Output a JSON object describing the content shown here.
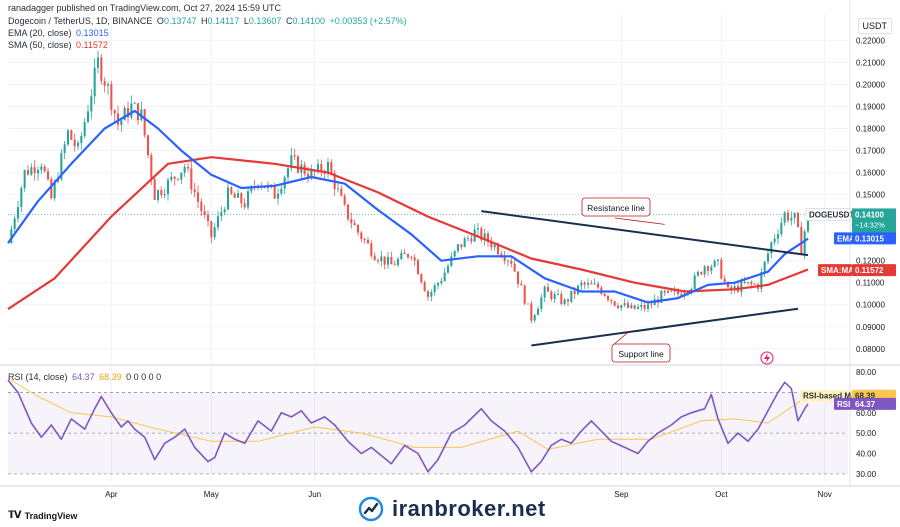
{
  "header": {
    "attribution": "ranadagger published on TradingView.com, Oct 27, 2024 15:59 UTC",
    "symbol": "Dogecoin / TetherUS, 1D, BINANCE",
    "o_label": "O",
    "o_val": "0.13747",
    "h_label": "H",
    "h_val": "0.14117",
    "l_label": "L",
    "l_val": "0.13607",
    "c_label": "C",
    "c_val": "0.14100",
    "change": "+0.00353 (+2.57%)",
    "ema_label": "EMA (20, close)",
    "ema_val": "0.13015",
    "sma_label": "SMA (50, close)",
    "sma_val": "0.11572",
    "rsi_label": "RSI (14, close)",
    "rsi_val": "64.37",
    "rsi_ma_val": "68.39",
    "rsi_rest": "0 0 0 0 0",
    "currency": "USDT"
  },
  "footer": {
    "brand": "TradingView",
    "watermark": "iranbroker.net"
  },
  "colors": {
    "up": "#26a69a",
    "down": "#ef5350",
    "ema": "#2962ff",
    "sma": "#e53935",
    "rsi": "#7e57c2",
    "rsi_ma": "#f9c74f",
    "trend": "#1a2f4f",
    "annot": "#b71c1c",
    "grid": "#f0f3fa"
  },
  "chart_data": [
    {
      "type": "candlestick",
      "title": "Dogecoin / TetherUS, 1D, BINANCE",
      "ylabel": "USDT",
      "ylim": [
        0.074,
        0.232
      ],
      "y_ticks": [
        "0.22000",
        "0.21000",
        "0.20000",
        "0.19000",
        "0.18000",
        "0.17000",
        "0.16000",
        "0.15000",
        "0.12000",
        "0.11000",
        "0.10000",
        "0.09000",
        "0.08000"
      ],
      "x_ticks": [
        "Apr",
        "May",
        "Jun",
        "Sep",
        "Oct",
        "Nov"
      ],
      "close_path": [
        [
          "2024-03-01",
          0.128
        ],
        [
          "2024-03-06",
          0.16
        ],
        [
          "2024-03-11",
          0.165
        ],
        [
          "2024-03-14",
          0.148
        ],
        [
          "2024-03-19",
          0.178
        ],
        [
          "2024-03-22",
          0.17
        ],
        [
          "2024-03-28",
          0.21
        ],
        [
          "2024-03-31",
          0.198
        ],
        [
          "2024-04-03",
          0.182
        ],
        [
          "2024-04-07",
          0.19
        ],
        [
          "2024-04-10",
          0.186
        ],
        [
          "2024-04-14",
          0.15
        ],
        [
          "2024-04-18",
          0.155
        ],
        [
          "2024-04-23",
          0.163
        ],
        [
          "2024-04-28",
          0.143
        ],
        [
          "2024-05-01",
          0.131
        ],
        [
          "2024-05-06",
          0.15
        ],
        [
          "2024-05-11",
          0.146
        ],
        [
          "2024-05-15",
          0.157
        ],
        [
          "2024-05-20",
          0.15
        ],
        [
          "2024-05-25",
          0.165
        ],
        [
          "2024-05-31",
          0.159
        ],
        [
          "2024-06-05",
          0.163
        ],
        [
          "2024-06-10",
          0.143
        ],
        [
          "2024-06-14",
          0.133
        ],
        [
          "2024-06-19",
          0.123
        ],
        [
          "2024-06-24",
          0.118
        ],
        [
          "2024-06-30",
          0.124
        ],
        [
          "2024-07-05",
          0.104
        ],
        [
          "2024-07-09",
          0.112
        ],
        [
          "2024-07-14",
          0.126
        ],
        [
          "2024-07-19",
          0.133
        ],
        [
          "2024-07-24",
          0.128
        ],
        [
          "2024-07-30",
          0.12
        ],
        [
          "2024-08-05",
          0.094
        ],
        [
          "2024-08-09",
          0.106
        ],
        [
          "2024-08-15",
          0.101
        ],
        [
          "2024-08-20",
          0.109
        ],
        [
          "2024-08-25",
          0.108
        ],
        [
          "2024-08-30",
          0.101
        ],
        [
          "2024-09-04",
          0.098
        ],
        [
          "2024-09-09",
          0.099
        ],
        [
          "2024-09-13",
          0.104
        ],
        [
          "2024-09-18",
          0.105
        ],
        [
          "2024-09-22",
          0.109
        ],
        [
          "2024-09-26",
          0.118
        ],
        [
          "2024-09-30",
          0.118
        ],
        [
          "2024-10-03",
          0.106
        ],
        [
          "2024-10-08",
          0.109
        ],
        [
          "2024-10-12",
          0.109
        ],
        [
          "2024-10-16",
          0.128
        ],
        [
          "2024-10-20",
          0.141
        ],
        [
          "2024-10-23",
          0.139
        ],
        [
          "2024-10-25",
          0.126
        ],
        [
          "2024-10-27",
          0.141
        ]
      ],
      "series": [
        {
          "name": "EMA",
          "values": [
            [
              "2024-03-01",
              0.128
            ],
            [
              "2024-03-10",
              0.147
            ],
            [
              "2024-03-20",
              0.164
            ],
            [
              "2024-03-30",
              0.18
            ],
            [
              "2024-04-08",
              0.188
            ],
            [
              "2024-04-15",
              0.18
            ],
            [
              "2024-04-22",
              0.17
            ],
            [
              "2024-05-01",
              0.159
            ],
            [
              "2024-05-10",
              0.153
            ],
            [
              "2024-05-20",
              0.154
            ],
            [
              "2024-05-31",
              0.158
            ],
            [
              "2024-06-10",
              0.155
            ],
            [
              "2024-06-20",
              0.143
            ],
            [
              "2024-06-30",
              0.132
            ],
            [
              "2024-07-09",
              0.12
            ],
            [
              "2024-07-20",
              0.122
            ],
            [
              "2024-07-30",
              0.122
            ],
            [
              "2024-08-09",
              0.112
            ],
            [
              "2024-08-20",
              0.106
            ],
            [
              "2024-08-30",
              0.106
            ],
            [
              "2024-09-09",
              0.101
            ],
            [
              "2024-09-18",
              0.103
            ],
            [
              "2024-09-27",
              0.109
            ],
            [
              "2024-10-05",
              0.11
            ],
            [
              "2024-10-15",
              0.115
            ],
            [
              "2024-10-20",
              0.123
            ],
            [
              "2024-10-27",
              0.13
            ]
          ]
        },
        {
          "name": "SMA",
          "values": [
            [
              "2024-03-01",
              0.098
            ],
            [
              "2024-03-15",
              0.112
            ],
            [
              "2024-04-01",
              0.14
            ],
            [
              "2024-04-18",
              0.164
            ],
            [
              "2024-05-01",
              0.167
            ],
            [
              "2024-05-20",
              0.164
            ],
            [
              "2024-06-05",
              0.16
            ],
            [
              "2024-06-20",
              0.151
            ],
            [
              "2024-07-05",
              0.14
            ],
            [
              "2024-07-20",
              0.131
            ],
            [
              "2024-08-05",
              0.121
            ],
            [
              "2024-08-20",
              0.116
            ],
            [
              "2024-09-05",
              0.11
            ],
            [
              "2024-09-20",
              0.106
            ],
            [
              "2024-10-05",
              0.107
            ],
            [
              "2024-10-15",
              0.109
            ],
            [
              "2024-10-27",
              0.116
            ]
          ]
        }
      ],
      "trendlines": [
        {
          "name": "Resistance line",
          "from": [
            "2024-07-21",
            0.1425
          ],
          "to": [
            "2024-10-27",
            0.1225
          ]
        },
        {
          "name": "Support line",
          "from": [
            "2024-08-05",
            0.0815
          ],
          "to": [
            "2024-10-24",
            0.0982
          ]
        }
      ],
      "price_labels": [
        {
          "label": "DOGEUSDT",
          "value": "0.14100",
          "sub1": "−14:32%",
          "sub2": "08:00:22"
        },
        {
          "label": "EMA",
          "value": "0.13015"
        },
        {
          "label": "SMA:MA",
          "value": "0.11572"
        }
      ]
    },
    {
      "type": "line",
      "title": "RSI (14, close)",
      "ylim": [
        26,
        82
      ],
      "y_ticks": [
        "80.00",
        "60.00",
        "50.00",
        "40.00",
        "30.00"
      ],
      "series": [
        {
          "name": "RSI",
          "values": [
            [
              "2024-03-01",
              76
            ],
            [
              "2024-03-04",
              70
            ],
            [
              "2024-03-08",
              55
            ],
            [
              "2024-03-11",
              48
            ],
            [
              "2024-03-14",
              54
            ],
            [
              "2024-03-17",
              47
            ],
            [
              "2024-03-20",
              57
            ],
            [
              "2024-03-24",
              52
            ],
            [
              "2024-03-27",
              62
            ],
            [
              "2024-03-29",
              68
            ],
            [
              "2024-04-01",
              60
            ],
            [
              "2024-04-04",
              53
            ],
            [
              "2024-04-06",
              56
            ],
            [
              "2024-04-08",
              52
            ],
            [
              "2024-04-11",
              48
            ],
            [
              "2024-04-14",
              37
            ],
            [
              "2024-04-17",
              45
            ],
            [
              "2024-04-20",
              48
            ],
            [
              "2024-04-23",
              52
            ],
            [
              "2024-04-26",
              43
            ],
            [
              "2024-04-30",
              36
            ],
            [
              "2024-05-02",
              38
            ],
            [
              "2024-05-05",
              50
            ],
            [
              "2024-05-08",
              47
            ],
            [
              "2024-05-11",
              45
            ],
            [
              "2024-05-15",
              56
            ],
            [
              "2024-05-19",
              51
            ],
            [
              "2024-05-22",
              60
            ],
            [
              "2024-05-25",
              58
            ],
            [
              "2024-05-28",
              61
            ],
            [
              "2024-05-31",
              55
            ],
            [
              "2024-06-04",
              58
            ],
            [
              "2024-06-07",
              54
            ],
            [
              "2024-06-11",
              46
            ],
            [
              "2024-06-15",
              40
            ],
            [
              "2024-06-18",
              43
            ],
            [
              "2024-06-21",
              39
            ],
            [
              "2024-06-24",
              35
            ],
            [
              "2024-06-28",
              44
            ],
            [
              "2024-07-02",
              40
            ],
            [
              "2024-07-05",
              31
            ],
            [
              "2024-07-08",
              37
            ],
            [
              "2024-07-12",
              50
            ],
            [
              "2024-07-16",
              54
            ],
            [
              "2024-07-21",
              62
            ],
            [
              "2024-07-24",
              56
            ],
            [
              "2024-07-28",
              51
            ],
            [
              "2024-08-01",
              43
            ],
            [
              "2024-08-05",
              31
            ],
            [
              "2024-08-08",
              36
            ],
            [
              "2024-08-11",
              44
            ],
            [
              "2024-08-14",
              47
            ],
            [
              "2024-08-17",
              45
            ],
            [
              "2024-08-20",
              51
            ],
            [
              "2024-08-23",
              56
            ],
            [
              "2024-08-26",
              51
            ],
            [
              "2024-08-29",
              46
            ],
            [
              "2024-09-02",
              43
            ],
            [
              "2024-09-06",
              40
            ],
            [
              "2024-09-09",
              46
            ],
            [
              "2024-09-12",
              50
            ],
            [
              "2024-09-16",
              54
            ],
            [
              "2024-09-19",
              58
            ],
            [
              "2024-09-22",
              60
            ],
            [
              "2024-09-26",
              62
            ],
            [
              "2024-09-28",
              69
            ],
            [
              "2024-09-30",
              57
            ],
            [
              "2024-10-03",
              45
            ],
            [
              "2024-10-06",
              50
            ],
            [
              "2024-10-09",
              46
            ],
            [
              "2024-10-12",
              52
            ],
            [
              "2024-10-14",
              58
            ],
            [
              "2024-10-16",
              64
            ],
            [
              "2024-10-18",
              70
            ],
            [
              "2024-10-20",
              75
            ],
            [
              "2024-10-22",
              72
            ],
            [
              "2024-10-24",
              56
            ],
            [
              "2024-10-26",
              62
            ],
            [
              "2024-10-27",
              64.37
            ]
          ]
        },
        {
          "name": "RSI-based MA",
          "values": [
            [
              "2024-03-01",
              77
            ],
            [
              "2024-03-10",
              68
            ],
            [
              "2024-03-20",
              60
            ],
            [
              "2024-04-01",
              58
            ],
            [
              "2024-04-15",
              52
            ],
            [
              "2024-05-01",
              46
            ],
            [
              "2024-05-15",
              46
            ],
            [
              "2024-06-01",
              53
            ],
            [
              "2024-06-15",
              50
            ],
            [
              "2024-07-01",
              43
            ],
            [
              "2024-07-15",
              43
            ],
            [
              "2024-08-01",
              51
            ],
            [
              "2024-08-10",
              42
            ],
            [
              "2024-08-25",
              47
            ],
            [
              "2024-09-10",
              47
            ],
            [
              "2024-09-25",
              56
            ],
            [
              "2024-10-05",
              57
            ],
            [
              "2024-10-15",
              55
            ],
            [
              "2024-10-27",
              68.39
            ]
          ]
        }
      ]
    }
  ]
}
